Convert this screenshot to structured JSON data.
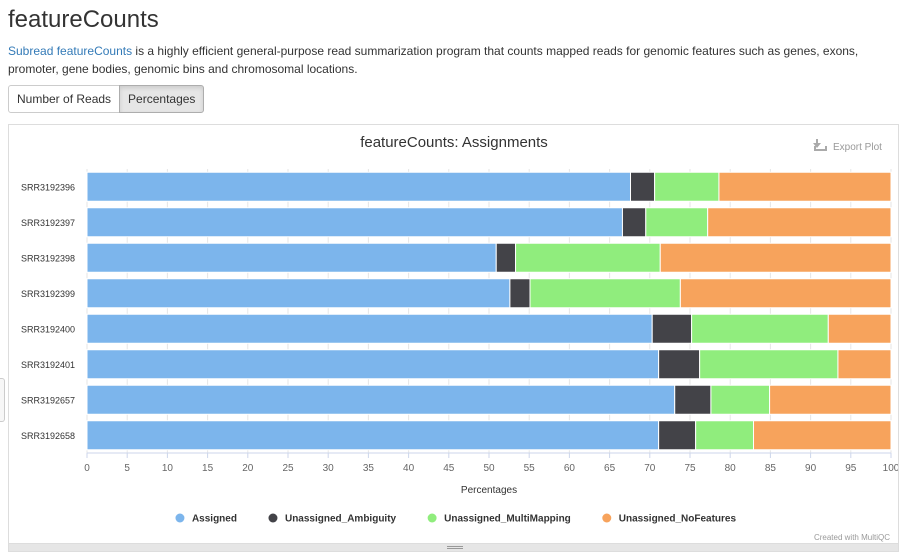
{
  "page": {
    "title": "featureCounts",
    "description_link": "Subread featureCounts",
    "description_rest": " is a highly efficient general-purpose read summarization program that counts mapped reads for genomic features such as genes, exons, promoter, gene bodies, genomic bins and chromosomal locations."
  },
  "toggle": {
    "reads_label": "Number of Reads",
    "percent_label": "Percentages",
    "active": "Percentages"
  },
  "plot": {
    "export_label": "Export Plot",
    "export_icon": "download-icon",
    "credit": "Created with MultiQC"
  },
  "chart_data": {
    "type": "bar",
    "orientation": "horizontal",
    "stacked": true,
    "title": "featureCounts: Assignments",
    "xlabel": "Percentages",
    "ylabel": "",
    "xlim": [
      0,
      100
    ],
    "xticks": [
      0,
      5,
      10,
      15,
      20,
      25,
      30,
      35,
      40,
      45,
      50,
      55,
      60,
      65,
      70,
      75,
      80,
      85,
      90,
      95,
      100
    ],
    "categories": [
      "SRR3192396",
      "SRR3192397",
      "SRR3192398",
      "SRR3192399",
      "SRR3192400",
      "SRR3192401",
      "SRR3192657",
      "SRR3192658"
    ],
    "series": [
      {
        "name": "Assigned",
        "color": "#7cb5ec",
        "values": [
          67.6,
          66.6,
          50.9,
          52.6,
          70.3,
          71.1,
          73.1,
          71.1
        ]
      },
      {
        "name": "Unassigned_Ambiguity",
        "color": "#434348",
        "values": [
          3.0,
          2.9,
          2.4,
          2.5,
          4.9,
          5.1,
          4.5,
          4.6
        ]
      },
      {
        "name": "Unassigned_MultiMapping",
        "color": "#90ed7d",
        "values": [
          8.0,
          7.7,
          18.0,
          18.7,
          17.0,
          17.2,
          7.3,
          7.2
        ]
      },
      {
        "name": "Unassigned_NoFeatures",
        "color": "#f7a35c",
        "values": [
          21.4,
          22.8,
          28.7,
          26.2,
          7.8,
          6.6,
          15.1,
          17.1
        ]
      }
    ],
    "legend_position": "bottom",
    "grid": true
  }
}
